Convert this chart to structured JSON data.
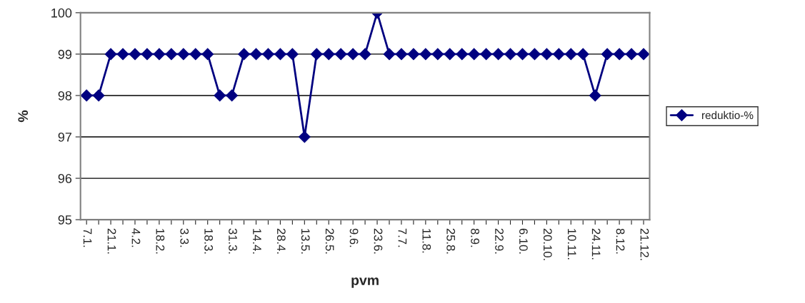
{
  "chart_data": {
    "type": "line",
    "xlabel": "pvm",
    "ylabel": "%",
    "categories": [
      "7.1.",
      null,
      "21.1.",
      null,
      "4.2.",
      null,
      "18.2.",
      null,
      "3.3.",
      null,
      "18.3.",
      null,
      "31.3.",
      null,
      "14.4.",
      null,
      "28.4.",
      null,
      "13.5.",
      null,
      "26.5.",
      null,
      "9.6.",
      null,
      "23.6.",
      null,
      "7.7.",
      null,
      "11.8.",
      null,
      "25.8.",
      null,
      "8.9.",
      null,
      "22.9.",
      null,
      "6.10.",
      null,
      "20.10.",
      null,
      "10.11.",
      null,
      "24.11.",
      null,
      "8.12.",
      null,
      "21.12."
    ],
    "series": [
      {
        "name": "reduktio-%",
        "color": "#000080",
        "values": [
          98,
          98,
          99,
          99,
          99,
          99,
          99,
          99,
          99,
          99,
          99,
          98,
          98,
          99,
          99,
          99,
          99,
          99,
          97,
          99,
          99,
          99,
          99,
          99,
          100,
          99,
          99,
          99,
          99,
          99,
          99,
          99,
          99,
          99,
          99,
          99,
          99,
          99,
          99,
          99,
          99,
          99,
          98,
          99,
          99,
          99,
          99
        ]
      }
    ],
    "ylim": [
      95,
      100
    ],
    "yticks": [
      95,
      96,
      97,
      98,
      99,
      100
    ],
    "grid": "y",
    "legend": "right",
    "marker": "diamond",
    "line_style": "solid"
  }
}
